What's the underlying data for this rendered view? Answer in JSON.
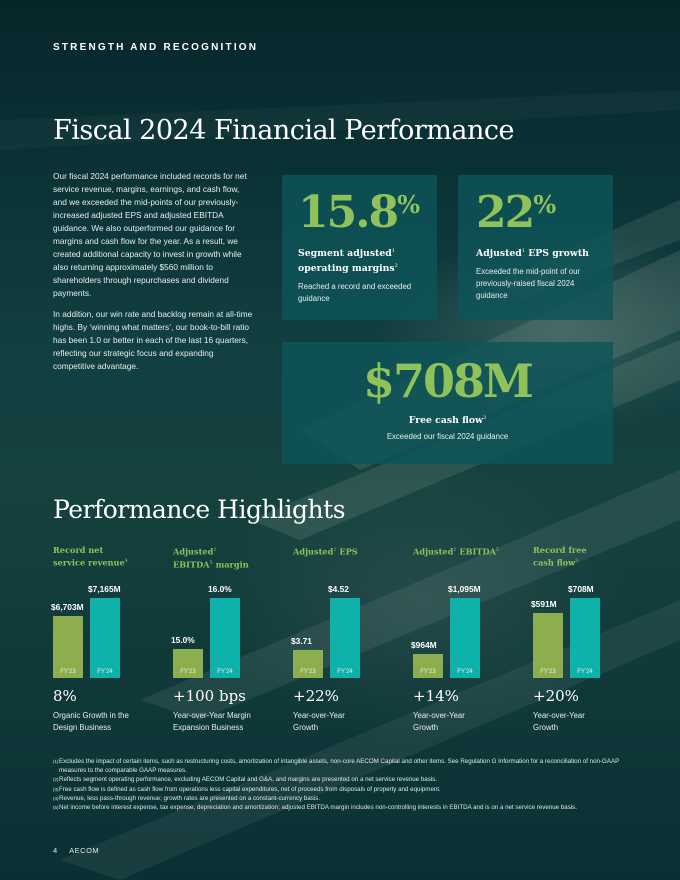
{
  "eyebrow": "STRENGTH AND RECOGNITION",
  "title": "Fiscal 2024 Financial Performance",
  "intro": [
    "Our fiscal 2024 performance included records for net service revenue, margins, earnings, and cash flow, and we exceeded the mid-points of our previously-increased adjusted EPS and adjusted EBITDA guidance. We also outperformed our guidance for margins and cash flow for the year. As a result, we created additional capacity to invest in growth while also returning approximately $560 million to shareholders through repurchases and dividend payments.",
    "In addition, our win rate and backlog remain at all-time highs. By ‘winning what matters’, our book-to-bill ratio has been 1.0 or better in each of the last 16 quarters, reflecting our strategic focus and expanding competitive advantage."
  ],
  "stats": {
    "segment_margin": {
      "value": "15.8",
      "unit": "%",
      "title_a": "Segment adjusted",
      "title_sup": "1",
      "title_b": "operating margins",
      "title_sup2": "2",
      "desc": "Reached a record and exceeded guidance"
    },
    "eps_growth": {
      "value": "22",
      "unit": "%",
      "title_a": "Adjusted",
      "title_sup": "1",
      "title_b": " EPS growth",
      "desc": "Exceeded the mid-point of our previously-raised fiscal 2024 guidance"
    },
    "free_cash_flow": {
      "value": "$708M",
      "title": "Free cash flow",
      "title_sup": "3",
      "desc": "Exceeded our fiscal 2024 guidance"
    }
  },
  "highlights_title": "Performance Highlights",
  "chart_data": [
    {
      "type": "bar",
      "title": "Record net service revenue",
      "categories": [
        "FY'23",
        "FY'24"
      ],
      "values": [
        6703,
        7165
      ],
      "labels": [
        "$6,703M",
        "$7,165M"
      ],
      "ylim": [
        0,
        7165
      ],
      "growth": "8%",
      "growth_desc": "Organic Growth in the Design Business"
    },
    {
      "type": "bar",
      "title": "Adjusted EBITDA margin",
      "categories": [
        "FY'23",
        "FY'24"
      ],
      "values": [
        15.0,
        16.0
      ],
      "labels": [
        "15.0%",
        "16.0%"
      ],
      "growth": "+100 bps",
      "growth_desc": "Year-over-Year Margin Expansion Business"
    },
    {
      "type": "bar",
      "title": "Adjusted EPS",
      "categories": [
        "FY'23",
        "FY'24"
      ],
      "values": [
        3.71,
        4.52
      ],
      "labels": [
        "$3.71",
        "$4.52"
      ],
      "growth": "+22%",
      "growth_desc": "Year-over-Year Growth"
    },
    {
      "type": "bar",
      "title": "Adjusted EBITDA",
      "categories": [
        "FY'23",
        "FY'24"
      ],
      "values": [
        964,
        1095
      ],
      "labels": [
        "$964M",
        "$1,095M"
      ],
      "growth": "+14%",
      "growth_desc": "Year-over-Year Growth"
    },
    {
      "type": "bar",
      "title": "Record free cash flow",
      "categories": [
        "FY'23",
        "FY'24"
      ],
      "values": [
        591,
        708
      ],
      "labels": [
        "$591M",
        "$708M"
      ],
      "growth": "+20%",
      "growth_desc": "Year-over-Year Growth"
    }
  ],
  "highlight_labels": [
    {
      "a": "Record net",
      "b": "service revenue",
      "sup": "4"
    },
    {
      "a": "Adjusted",
      "sup": "1",
      "b": "EBITDA",
      "sup2": "5",
      "c": " margin"
    },
    {
      "a": "Adjusted",
      "sup": "1",
      "b": " EPS"
    },
    {
      "a": "Adjusted",
      "sup": "1",
      "b": " EBITDA",
      "sup2": "5"
    },
    {
      "a": "Record free",
      "b": "cash flow",
      "sup": "3"
    }
  ],
  "footnotes": [
    {
      "mark": "(1)",
      "text": "Excludes the impact of certain items, such as restructuring costs, amortization of intangible assets, non-core AECOM Capital and other items. See Regulation G Information for a reconciliation of non-GAAP measures to the comparable GAAP measures."
    },
    {
      "mark": "(2)",
      "text": "Reflects segment operating performance, excluding AECOM Capital and G&A, and margins are presented on a net service revenue basis."
    },
    {
      "mark": "(3)",
      "text": "Free cash flow is defined as cash flow from operations less capital expenditures, net of proceeds from disposals of property and equipment."
    },
    {
      "mark": "(4)",
      "text": "Revenue, less pass-through revenue; growth rates are presented on a constant-currency basis."
    },
    {
      "mark": "(5)",
      "text": "Net income before interest expense, tax expense, depreciation and amortization; adjusted EBITDA margin includes non-controlling interests in EBITDA and is on a net service revenue basis."
    }
  ],
  "footer": {
    "page": "4",
    "company": "AECOM"
  },
  "colors": {
    "green": "#8fc25a",
    "teal": "#0fb1ab",
    "panel": "#0e5458"
  }
}
